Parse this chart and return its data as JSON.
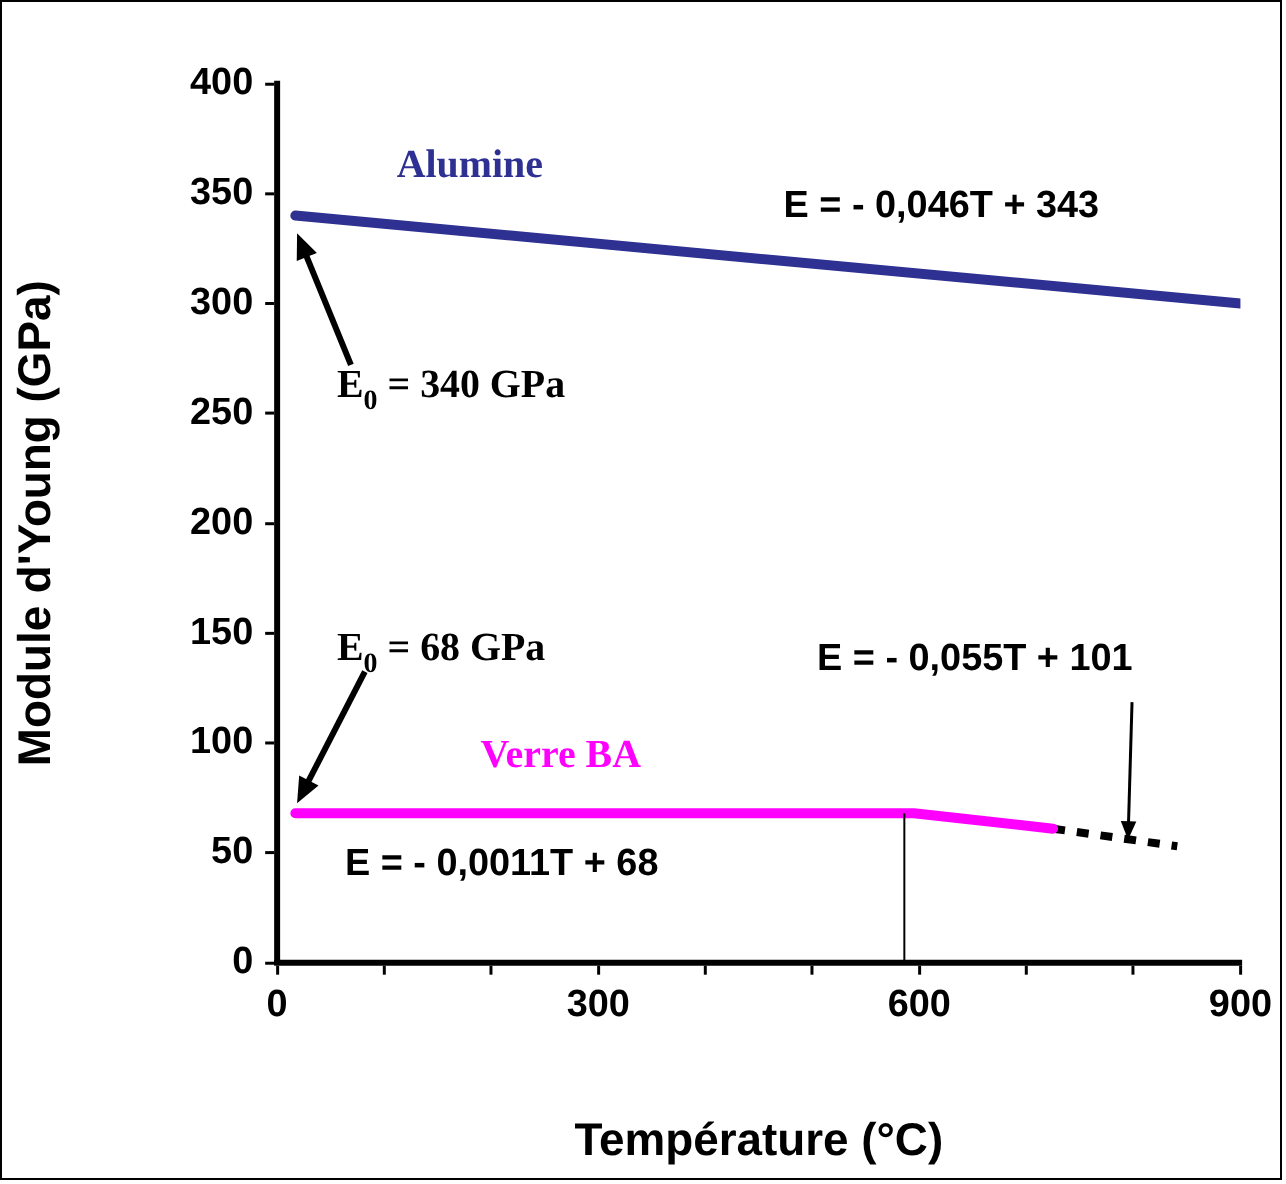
{
  "chart_data": {
    "type": "line",
    "xlabel": "Température (°C)",
    "ylabel": "Module d'Young (GPa)",
    "xlim": [
      0,
      900
    ],
    "xticks": [
      0,
      {
        "value": 100,
        "label": null
      },
      {
        "value": 200,
        "label": null
      },
      300,
      {
        "value": 400,
        "label": null
      },
      {
        "value": 500,
        "label": null
      },
      600,
      {
        "value": 700,
        "label": null
      },
      {
        "value": 800,
        "label": null
      },
      900
    ],
    "ylim": [
      0,
      400
    ],
    "yticks": [
      0,
      50,
      100,
      150,
      200,
      250,
      300,
      350,
      400
    ],
    "grid": false,
    "legend": false,
    "marker": "none",
    "series": [
      {
        "name": "Alumine",
        "color": "#2e3192",
        "x": [
          17,
          900
        ],
        "values": [
          340,
          300
        ],
        "line_style": "solid"
      },
      {
        "name": "Verre BA",
        "color": "#ff00ff",
        "x": [
          17,
          595,
          725
        ],
        "values": [
          68,
          68,
          61
        ],
        "line_style": "solid"
      },
      {
        "color": "#000000",
        "x": [
          725,
          841
        ],
        "values": [
          61,
          53
        ],
        "line_style": "dashed"
      }
    ],
    "ref_lines": [
      {
        "axis": "x",
        "value": 586,
        "color": "#000000"
      }
    ],
    "annotations": [
      "E$_{0}$ = 340 GPa",
      "E = - 0,046T + 343",
      "E$_{0}$ = 68 GPa",
      {
        "text": "E = - 0,055T + 101",
        "x": 795,
        "y": 56
      },
      "E = - 0,0011T + 68"
    ]
  }
}
